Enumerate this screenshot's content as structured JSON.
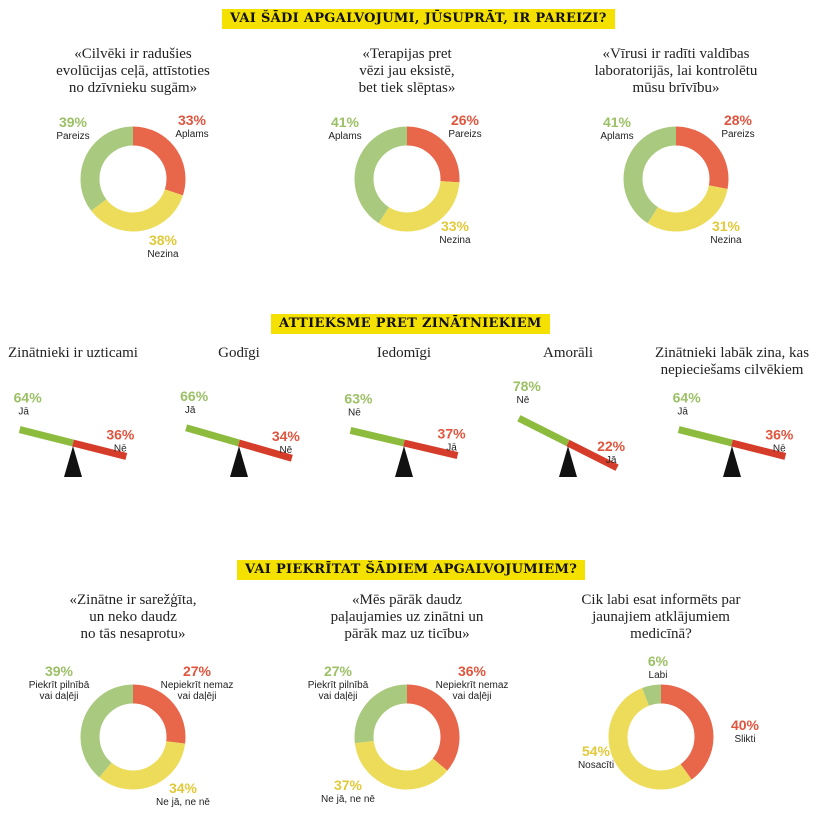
{
  "colors": {
    "red": "#e8664a",
    "yellow": "#ecdc5a",
    "green": "#a8c97e",
    "beam_green": "#8dbb3e",
    "beam_red": "#d63c2a",
    "pct_green": "#9cc066",
    "pct_red": "#e0553e",
    "pct_yellow": "#e2c93a"
  },
  "sections": {
    "s1": "VAI ŠĀDI APGALVOJUMI, JŪSUPRĀT, IR PAREIZI?",
    "s2": "ATTIEKSME PRET ZINĀTNIEKIEM",
    "s3": "VAI PIEKRĪTAT ŠĀDIEM APGALVOJUMIEM?"
  },
  "chart_data": [
    {
      "type": "pie",
      "title_lines": [
        "«Cilvēki ir radušies",
        "evolūcijas ceļā, attīstoties",
        "no dzīvnieku sugām»"
      ],
      "slices": [
        {
          "pct": "33%",
          "label": [
            "Aplams"
          ],
          "value": 33,
          "color": "red"
        },
        {
          "pct": "38%",
          "label": [
            "Nezina"
          ],
          "value": 38,
          "color": "yellow"
        },
        {
          "pct": "39%",
          "label": [
            "Pareizs"
          ],
          "value": 39,
          "color": "green"
        }
      ]
    },
    {
      "type": "pie",
      "title_lines": [
        "«Terapijas pret",
        "vēzi jau eksistē,",
        "bet tiek slēptas»"
      ],
      "slices": [
        {
          "pct": "26%",
          "label": [
            "Pareizs"
          ],
          "value": 26,
          "color": "red"
        },
        {
          "pct": "33%",
          "label": [
            "Nezina"
          ],
          "value": 33,
          "color": "yellow"
        },
        {
          "pct": "41%",
          "label": [
            "Aplams"
          ],
          "value": 41,
          "color": "green"
        }
      ]
    },
    {
      "type": "pie",
      "title_lines": [
        "«Vīrusi ir radīti valdības",
        "laboratorijās, lai kontrolētu",
        "mūsu brīvību»"
      ],
      "slices": [
        {
          "pct": "28%",
          "label": [
            "Pareizs"
          ],
          "value": 28,
          "color": "red"
        },
        {
          "pct": "31%",
          "label": [
            "Nezina"
          ],
          "value": 31,
          "color": "yellow"
        },
        {
          "pct": "41%",
          "label": [
            "Aplams"
          ],
          "value": 41,
          "color": "green"
        }
      ]
    },
    {
      "type": "bar",
      "title_lines": [
        "Zinātnieki ir uzticami"
      ],
      "left": {
        "pct": "64%",
        "label": "Jā",
        "value": 64
      },
      "right": {
        "pct": "36%",
        "label": "Nē",
        "value": 36
      }
    },
    {
      "type": "bar",
      "title_lines": [
        "Godīgi"
      ],
      "left": {
        "pct": "66%",
        "label": "Jā",
        "value": 66
      },
      "right": {
        "pct": "34%",
        "label": "Nē",
        "value": 34
      }
    },
    {
      "type": "bar",
      "title_lines": [
        "Iedomīgi"
      ],
      "left": {
        "pct": "63%",
        "label": "Nē",
        "value": 63
      },
      "right": {
        "pct": "37%",
        "label": "Jā",
        "value": 37
      }
    },
    {
      "type": "bar",
      "title_lines": [
        "Amorāli"
      ],
      "left": {
        "pct": "78%",
        "label": "Nē",
        "value": 78
      },
      "right": {
        "pct": "22%",
        "label": "Jā",
        "value": 22
      }
    },
    {
      "type": "bar",
      "title_lines": [
        "Zinātnieki labāk zina, kas",
        "nepieciešams cilvēkiem"
      ],
      "left": {
        "pct": "64%",
        "label": "Jā",
        "value": 64
      },
      "right": {
        "pct": "36%",
        "label": "Nē",
        "value": 36
      }
    },
    {
      "type": "pie",
      "title_lines": [
        "«Zinātne ir sarežģīta,",
        "un neko daudz",
        "no tās nesaprotu»"
      ],
      "slices": [
        {
          "pct": "27%",
          "label": [
            "Nepiekrīt nemaz",
            "vai daļēji"
          ],
          "value": 27,
          "color": "red"
        },
        {
          "pct": "34%",
          "label": [
            "Ne jā, ne nē"
          ],
          "value": 34,
          "color": "yellow"
        },
        {
          "pct": "39%",
          "label": [
            "Piekrīt pilnībā",
            "vai daļēji"
          ],
          "value": 39,
          "color": "green"
        }
      ]
    },
    {
      "type": "pie",
      "title_lines": [
        "«Mēs pārāk daudz",
        "paļaujamies uz zinātni un",
        "pārāk maz uz ticību»"
      ],
      "slices": [
        {
          "pct": "36%",
          "label": [
            "Nepiekrīt nemaz",
            "vai daļēji"
          ],
          "value": 36,
          "color": "red"
        },
        {
          "pct": "37%",
          "label": [
            "Ne jā, ne nē"
          ],
          "value": 37,
          "color": "yellow"
        },
        {
          "pct": "27%",
          "label": [
            "Piekrīt pilnībā",
            "vai daļēji"
          ],
          "value": 27,
          "color": "green"
        }
      ]
    },
    {
      "type": "pie",
      "title_lines": [
        "Cik labi esat informēts par",
        "jaunajiem atklājumiem",
        "medicīnā?"
      ],
      "slices": [
        {
          "pct": "40%",
          "label": [
            "Slikti"
          ],
          "value": 40,
          "color": "red"
        },
        {
          "pct": "54%",
          "label": [
            "Nosacīti"
          ],
          "value": 54,
          "color": "yellow"
        },
        {
          "pct": "6%",
          "label": [
            "Labi"
          ],
          "value": 6,
          "color": "green"
        }
      ]
    }
  ]
}
